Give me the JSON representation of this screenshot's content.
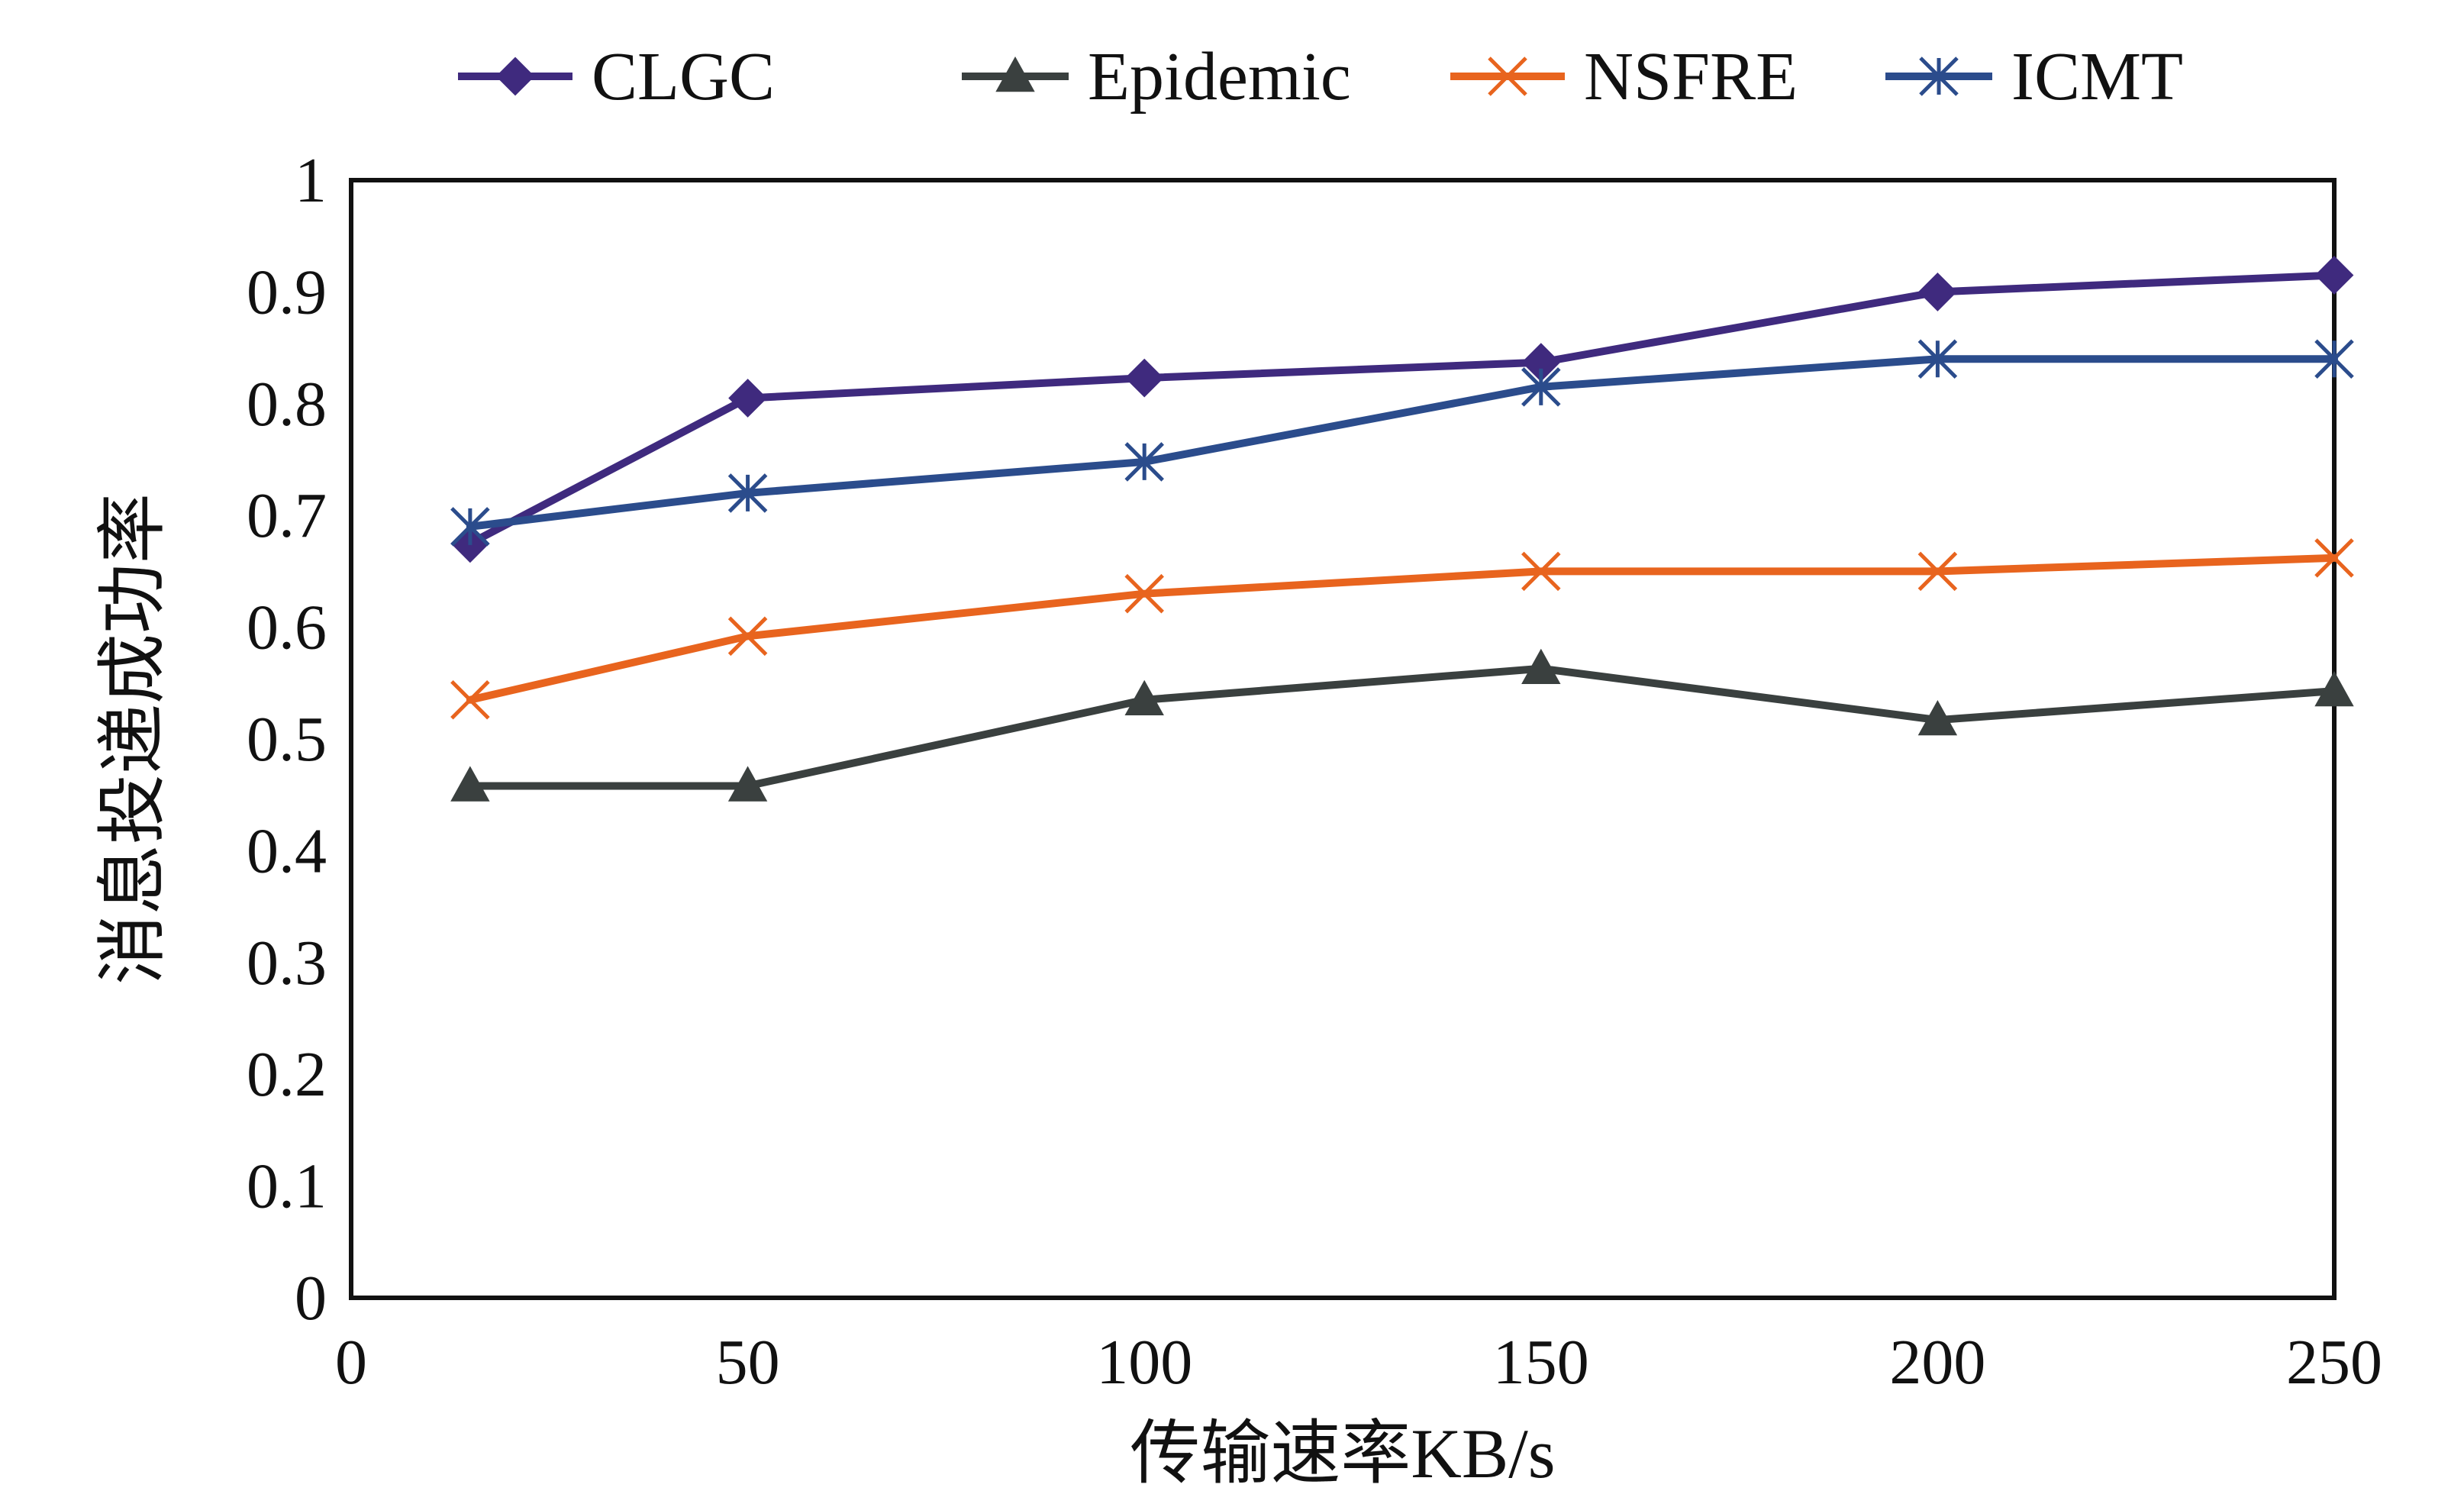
{
  "chart_data": {
    "type": "line",
    "title": "",
    "xlabel": "传输速率KB/s",
    "ylabel": "消息投递成功率",
    "xlim": [
      0,
      250
    ],
    "ylim": [
      0,
      1
    ],
    "x_ticks": [
      0,
      50,
      100,
      150,
      200,
      250
    ],
    "y_ticks": [
      0,
      0.1,
      0.2,
      0.3,
      0.4,
      0.5,
      0.6,
      0.7,
      0.8,
      0.9,
      1
    ],
    "x_tick_labels": [
      "0",
      "50",
      "100",
      "150",
      "200",
      "250"
    ],
    "y_tick_labels": [
      "0",
      "0.1",
      "0.2",
      "0.3",
      "0.4",
      "0.5",
      "0.6",
      "0.7",
      "0.8",
      "0.9",
      "1"
    ],
    "grid": false,
    "legend_position": "top",
    "x": [
      15,
      50,
      100,
      150,
      200,
      250
    ],
    "series": [
      {
        "name": "CLGC",
        "values": [
          0.675,
          0.805,
          0.823,
          0.837,
          0.9,
          0.915
        ],
        "color": "#3F2A7E",
        "marker": "diamond"
      },
      {
        "name": "Epidemic",
        "values": [
          0.458,
          0.458,
          0.535,
          0.563,
          0.517,
          0.543
        ],
        "color": "#3A403F",
        "marker": "triangle"
      },
      {
        "name": "NSFRE",
        "values": [
          0.535,
          0.592,
          0.63,
          0.65,
          0.65,
          0.662
        ],
        "color": "#E8641E",
        "marker": "x"
      },
      {
        "name": "ICMT",
        "values": [
          0.69,
          0.72,
          0.748,
          0.815,
          0.84,
          0.84
        ],
        "color": "#2B4C8C",
        "marker": "asterisk"
      }
    ]
  }
}
